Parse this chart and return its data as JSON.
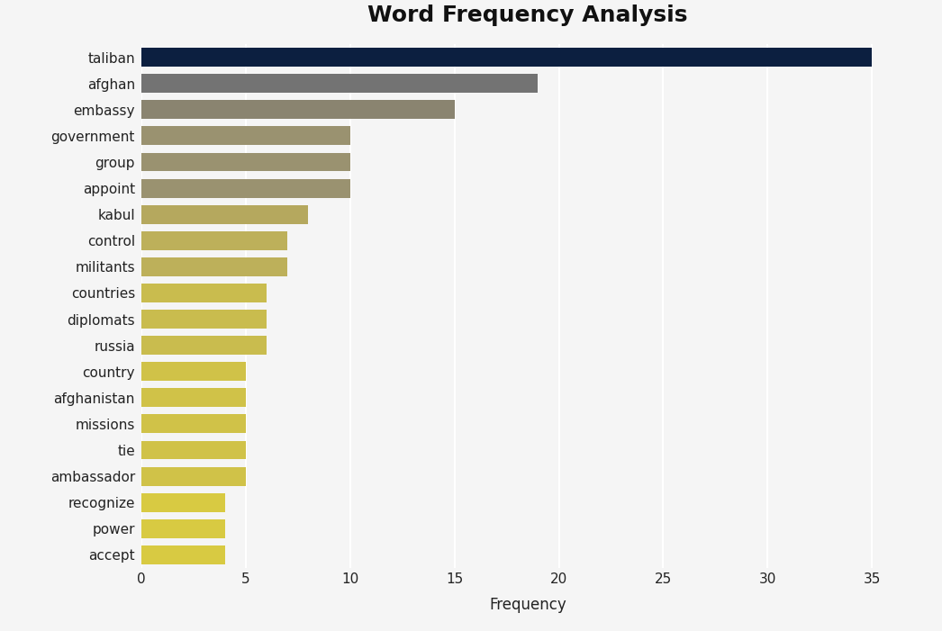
{
  "title": "Word Frequency Analysis",
  "xlabel": "Frequency",
  "categories": [
    "taliban",
    "afghan",
    "embassy",
    "government",
    "group",
    "appoint",
    "kabul",
    "control",
    "militants",
    "countries",
    "diplomats",
    "russia",
    "country",
    "afghanistan",
    "missions",
    "tie",
    "ambassador",
    "recognize",
    "power",
    "accept"
  ],
  "values": [
    35,
    19,
    15,
    10,
    10,
    10,
    8,
    7,
    7,
    6,
    6,
    6,
    5,
    5,
    5,
    5,
    5,
    4,
    4,
    4
  ],
  "colors": [
    "#0c1f40",
    "#737373",
    "#8a8470",
    "#9a9270",
    "#9a9270",
    "#9a9270",
    "#b5a85e",
    "#bdb05a",
    "#bdb05a",
    "#c9bc4e",
    "#c9bc4e",
    "#c9bc4e",
    "#d0c248",
    "#d0c248",
    "#d0c248",
    "#d0c248",
    "#d0c248",
    "#d8ca42",
    "#d8ca42",
    "#d8ca42"
  ],
  "xlim": [
    0,
    37
  ],
  "xticks": [
    0,
    5,
    10,
    15,
    20,
    25,
    30,
    35
  ],
  "background_color": "#f5f5f5",
  "plot_area_color": "#f5f5f5",
  "title_fontsize": 18,
  "label_fontsize": 12,
  "tick_fontsize": 11,
  "bar_height": 0.72,
  "grid_color": "#ffffff",
  "grid_linewidth": 1.5
}
